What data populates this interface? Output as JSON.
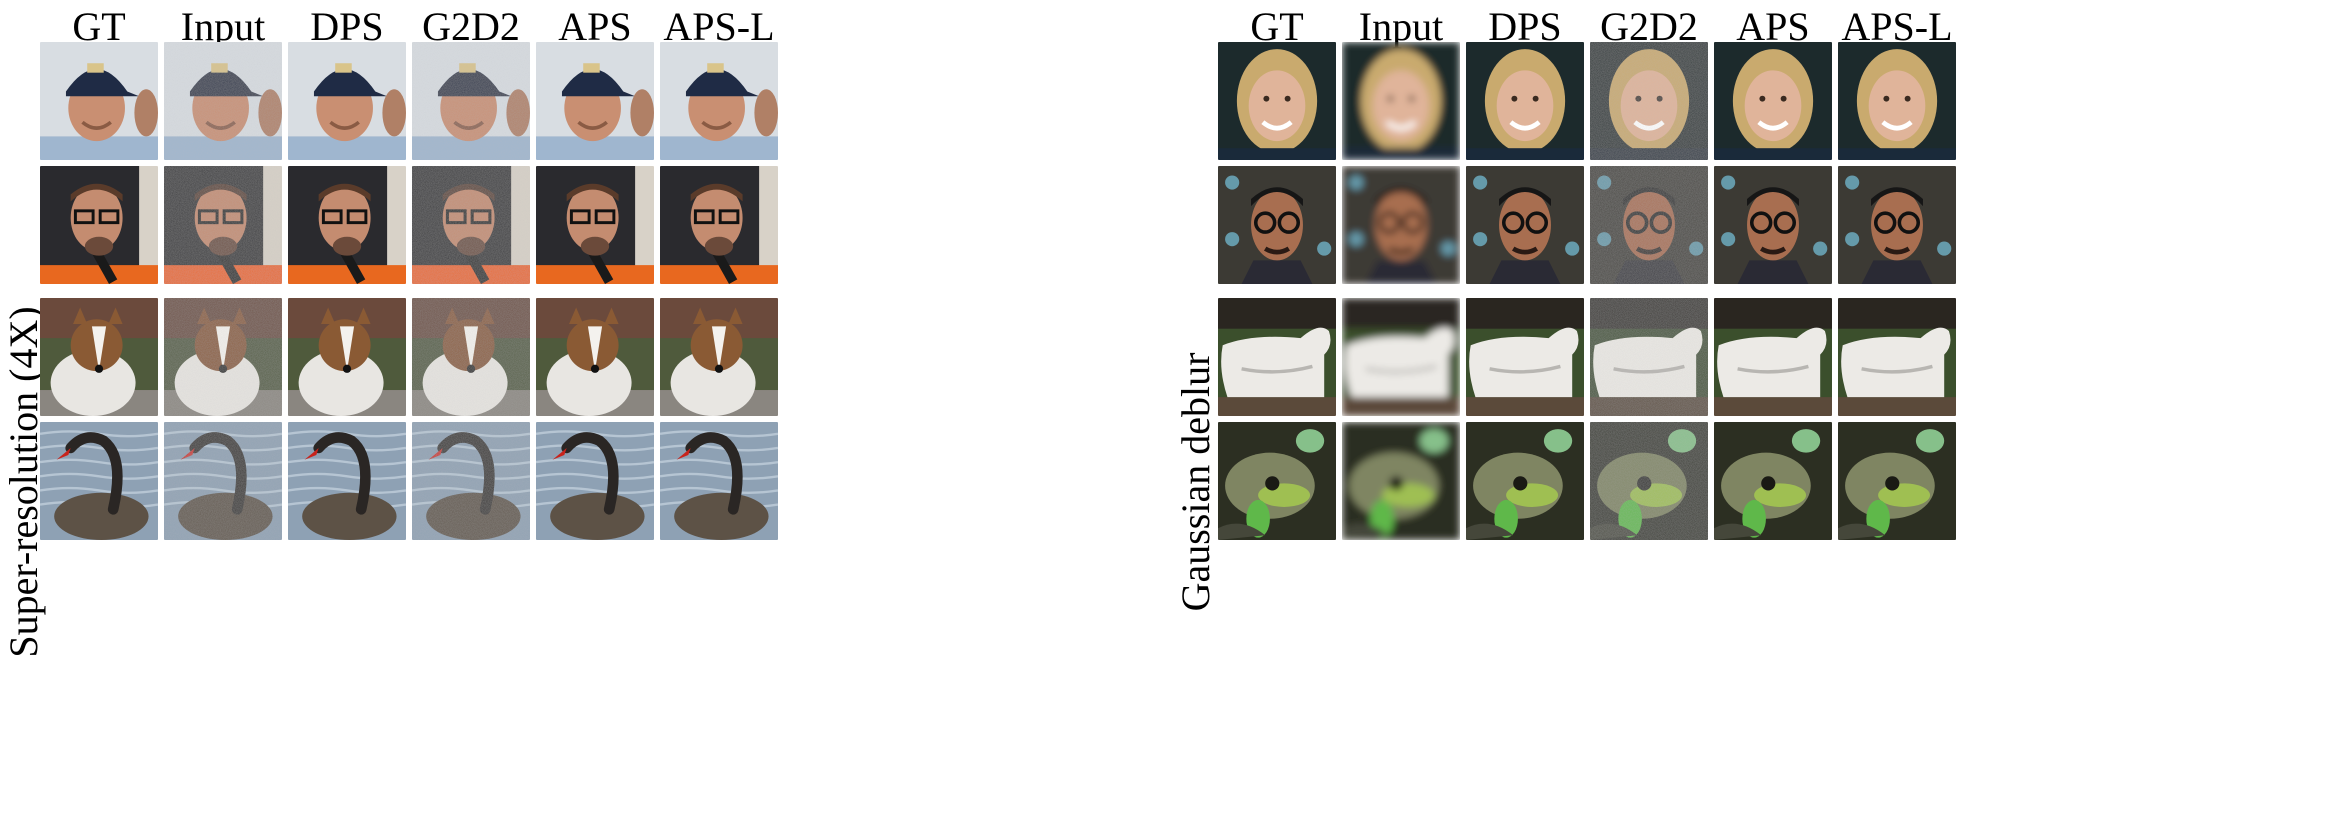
{
  "panels": [
    {
      "id": "super-resolution",
      "task_label": "Super-resolution (4X)",
      "columns": [
        "GT",
        "Input",
        "DPS",
        "G2D2",
        "APS",
        "APS-L"
      ],
      "rows": [
        {
          "subject": "man-in-cap",
          "palette": {
            "bg": "#d8dde2",
            "main": "#c98f72",
            "accent": "#1f2b45",
            "shadow": "#8a5b44"
          }
        },
        {
          "subject": "man-with-glasses-mic",
          "palette": {
            "bg": "#2a2a2e",
            "main": "#c48c70",
            "accent": "#e8681f",
            "shadow": "#6b4a3a"
          }
        },
        {
          "subject": "collie-dog",
          "palette": {
            "bg": "#4f5a3c",
            "main": "#e8e6e2",
            "accent": "#8a5a34",
            "shadow": "#6d6a66"
          }
        },
        {
          "subject": "black-swan",
          "palette": {
            "bg": "#8ea1b4",
            "main": "#2a2624",
            "accent": "#c8231c",
            "shadow": "#5d5246"
          }
        }
      ]
    },
    {
      "id": "gaussian-deblur",
      "task_label": "Gaussian deblur",
      "columns": [
        "GT",
        "Input",
        "DPS",
        "G2D2",
        "APS",
        "APS-L"
      ],
      "rows": [
        {
          "subject": "blonde-woman",
          "palette": {
            "bg": "#1c2a2c",
            "main": "#e0b49a",
            "accent": "#c9aa6e",
            "shadow": "#7d5a48"
          }
        },
        {
          "subject": "man-with-round-glasses",
          "palette": {
            "bg": "#3c3a34",
            "main": "#a86e50",
            "accent": "#111111",
            "shadow": "#2a2a34"
          }
        },
        {
          "subject": "white-terrier",
          "palette": {
            "bg": "#3b4f2c",
            "main": "#eceae6",
            "accent": "#5b4a3a",
            "shadow": "#b8b6b2"
          }
        },
        {
          "subject": "frog-with-leaves",
          "palette": {
            "bg": "#2c2f22",
            "main": "#7f8562",
            "accent": "#5fb84a",
            "shadow": "#45473a"
          }
        }
      ]
    }
  ]
}
